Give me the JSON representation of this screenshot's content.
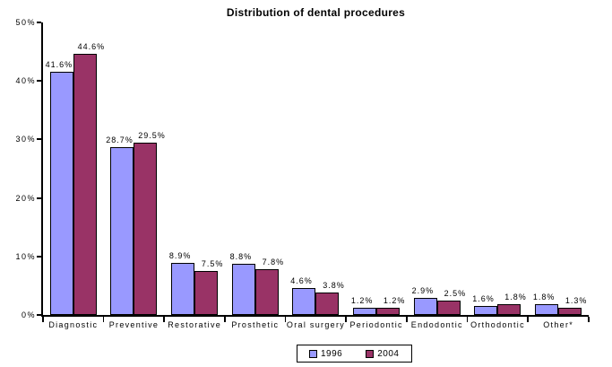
{
  "chart_data": {
    "type": "bar",
    "title": "Distribution of dental procedures",
    "categories": [
      "Diagnostic",
      "Preventive",
      "Restorative",
      "Prosthetic",
      "Oral surgery",
      "Periodontic",
      "Endodontic",
      "Orthodontic",
      "Other*"
    ],
    "series": [
      {
        "name": "1996",
        "color": "#9999FF",
        "values": [
          41.6,
          28.7,
          8.9,
          8.8,
          4.6,
          1.2,
          2.9,
          1.6,
          1.8
        ]
      },
      {
        "name": "2004",
        "color": "#993366",
        "values": [
          44.6,
          29.5,
          7.5,
          7.8,
          3.8,
          1.2,
          2.5,
          1.8,
          1.3
        ]
      }
    ],
    "xlabel": "",
    "ylabel": "",
    "ylim": [
      0,
      50
    ],
    "ytick_step": 10,
    "ytick_labels": [
      "0%",
      "10%",
      "20%",
      "30%",
      "40%",
      "50%"
    ],
    "value_label_suffix": "%",
    "value_label_decimals": 1,
    "grid": false,
    "legend_position": "bottom-center",
    "background_color": "#FFFFFF",
    "axis_color": "#000000"
  }
}
